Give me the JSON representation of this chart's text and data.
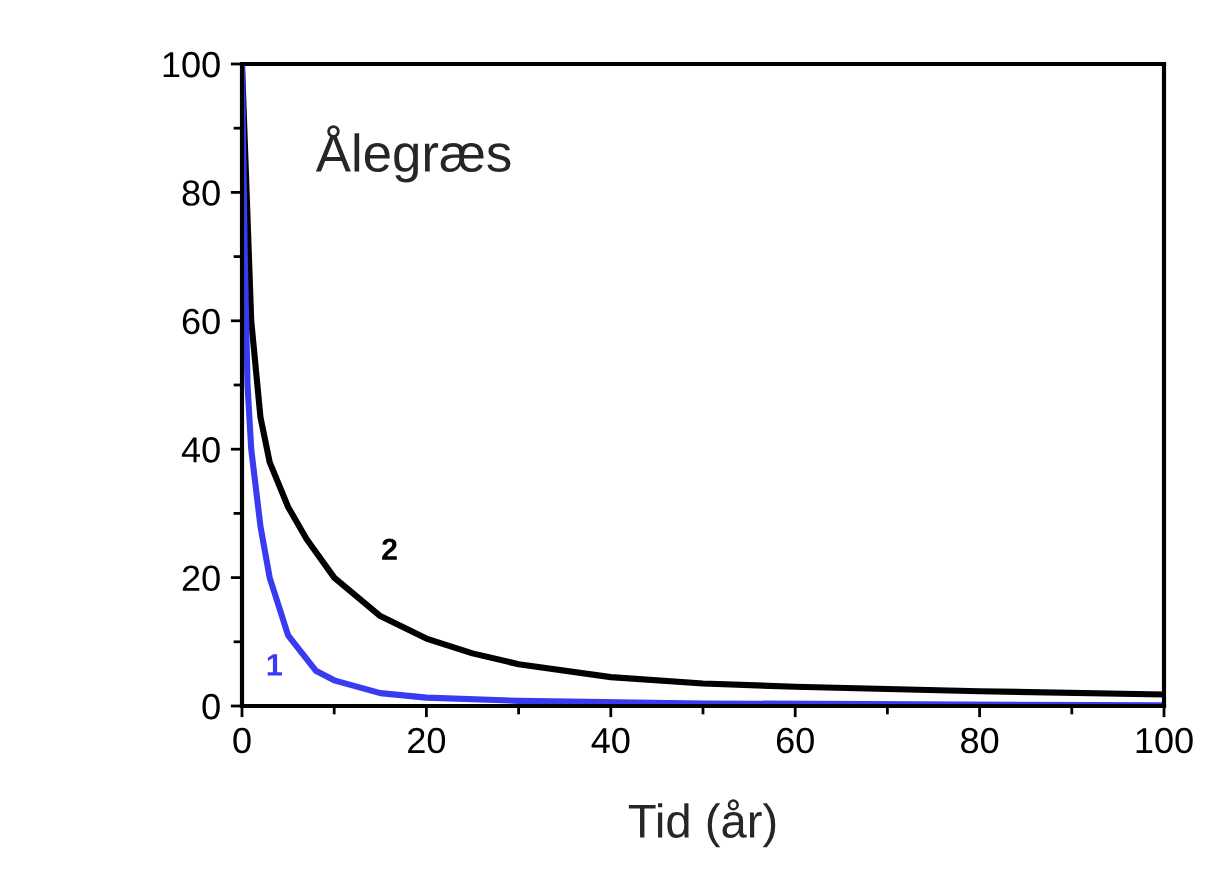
{
  "chart_data": {
    "type": "line",
    "title": "Ålegræs",
    "xlabel": "Tid (år)",
    "xlim": [
      0,
      100
    ],
    "ylim": [
      0,
      100
    ],
    "xticks": [
      0,
      20,
      40,
      60,
      80,
      100
    ],
    "yticks": [
      0,
      20,
      40,
      60,
      80,
      100
    ],
    "grid": false,
    "legend": false,
    "marker": "none",
    "line_style": "solid",
    "series": [
      {
        "name": "2",
        "color": "#000000",
        "x": [
          0,
          0.5,
          1,
          2,
          3,
          5,
          7,
          10,
          15,
          20,
          25,
          30,
          40,
          50,
          60,
          80,
          100
        ],
        "values": [
          100,
          80,
          60,
          45,
          38,
          31,
          26,
          20,
          14,
          10.5,
          8.2,
          6.5,
          4.5,
          3.5,
          3,
          2.3,
          1.8
        ]
      },
      {
        "name": "1",
        "color": "#3a3af0",
        "x": [
          0,
          0.3,
          0.6,
          1,
          2,
          3,
          5,
          8,
          10,
          15,
          20,
          30,
          50,
          100
        ],
        "values": [
          100,
          70,
          50,
          40,
          28,
          20,
          11,
          5.5,
          4,
          2,
          1.3,
          0.8,
          0.4,
          0.1
        ]
      }
    ]
  }
}
